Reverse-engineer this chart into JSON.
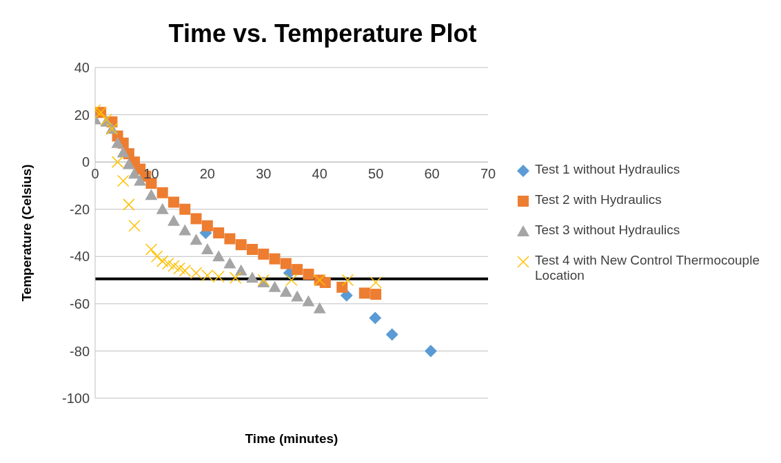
{
  "chart_data": {
    "type": "scatter",
    "title": "Time vs. Temperature Plot",
    "xlabel": "Time (minutes)",
    "ylabel": "Temperature (Celsius)",
    "xlim": [
      0,
      70
    ],
    "xticks": [
      0,
      10,
      20,
      30,
      40,
      50,
      60,
      70
    ],
    "ylim": [
      -100,
      40
    ],
    "yticks": [
      -100,
      -80,
      -60,
      -40,
      -20,
      0,
      20,
      40
    ],
    "grid": "y",
    "legend": "right",
    "series": [
      {
        "name": "Test 1 without Hydraulics",
        "color": "#5b9bd5",
        "marker": "diamond",
        "x": [
          19.7,
          34.6,
          44.8,
          49.9,
          52.9,
          59.8
        ],
        "values": [
          -30,
          -47,
          -56.5,
          -66,
          -73,
          -80
        ]
      },
      {
        "name": "Test 2 with Hydraulics",
        "color": "#ed7d31",
        "marker": "square",
        "x": [
          1,
          3,
          4,
          5,
          6,
          7,
          8,
          9,
          10,
          12,
          14,
          16,
          18,
          20,
          22,
          24,
          26,
          28,
          30,
          32,
          34,
          36,
          38,
          40,
          41,
          44,
          48,
          50
        ],
        "values": [
          21,
          17,
          11,
          8,
          3.5,
          0,
          -3,
          -6,
          -9,
          -13,
          -17,
          -20,
          -24,
          -27,
          -30,
          -32.5,
          -35,
          -37,
          -39,
          -41,
          -43,
          -45.5,
          -47.5,
          -50,
          -51,
          -53,
          -55.5,
          -56
        ]
      },
      {
        "name": "Test 3 without Hydraulics",
        "color": "#a5a5a5",
        "marker": "triangle",
        "x": [
          0,
          2,
          3,
          4,
          5,
          6,
          7,
          8,
          10,
          12,
          14,
          16,
          18,
          20,
          22,
          24,
          26,
          28,
          30,
          32,
          34,
          36,
          38,
          40
        ],
        "values": [
          18,
          17,
          14,
          8,
          4,
          -1,
          -5,
          -8,
          -14,
          -20,
          -25,
          -29,
          -33,
          -37,
          -40,
          -43,
          -46,
          -49,
          -51,
          -53,
          -55,
          -57,
          -59,
          -62
        ]
      },
      {
        "name": "Test 4 with New Control Thermocouple Location",
        "color": "#ffc000",
        "marker": "cross",
        "x": [
          0,
          1,
          2,
          3,
          4,
          5,
          6,
          7,
          10,
          11,
          12,
          13,
          14,
          15,
          16,
          18,
          20,
          22,
          25,
          30,
          35,
          40,
          45,
          50
        ],
        "values": [
          22,
          21,
          18,
          14,
          0,
          -8,
          -18,
          -27,
          -37,
          -40,
          -42,
          -43,
          -44,
          -45,
          -46,
          -47,
          -48,
          -48.5,
          -49,
          -50,
          -50,
          -50,
          -50,
          -51
        ]
      }
    ],
    "ref_lines": [
      {
        "axis": "y",
        "value": -49.5,
        "color": "#000000"
      }
    ]
  }
}
